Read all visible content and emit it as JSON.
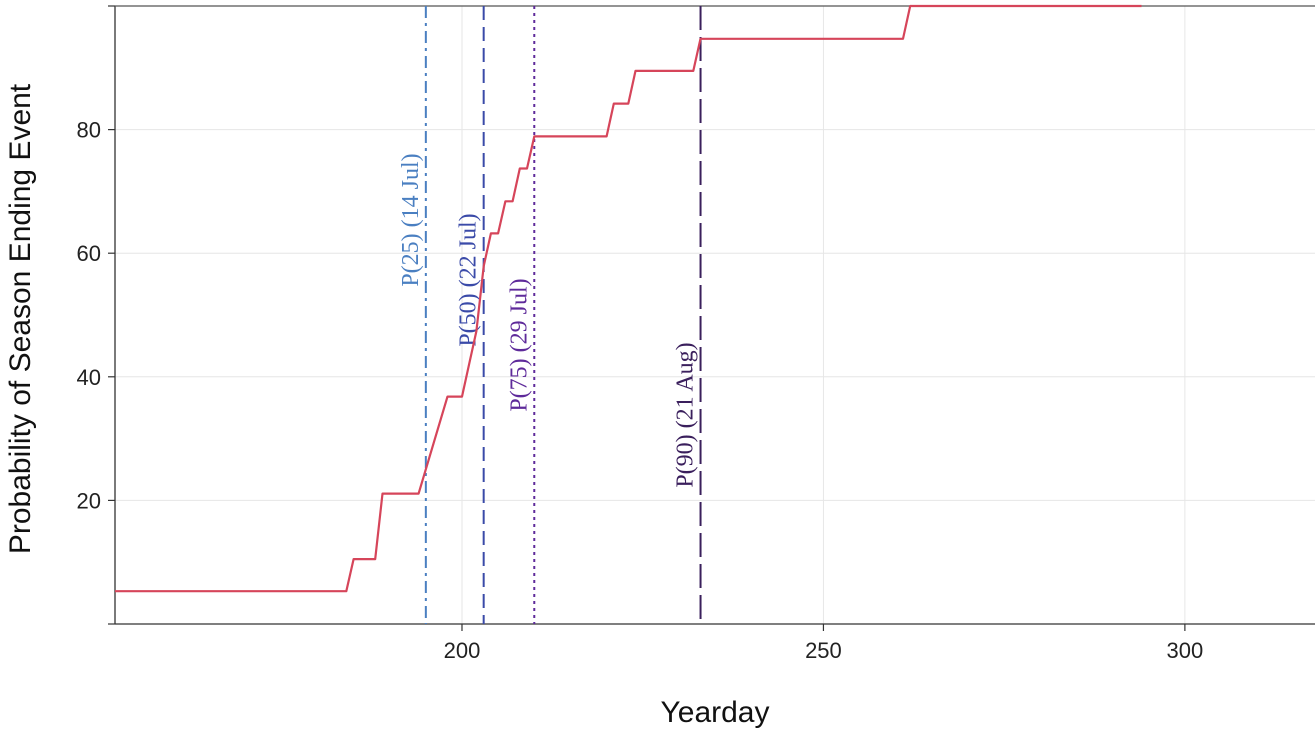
{
  "chart_data": {
    "type": "line",
    "title": "",
    "xlabel": "Yearday",
    "ylabel": "Probability of Season Ending Event",
    "xlim": [
      152,
      318
    ],
    "ylim": [
      0,
      100
    ],
    "xticks": [
      200,
      250,
      300
    ],
    "yticks": [
      20,
      40,
      60,
      80
    ],
    "grid": true,
    "series": [
      {
        "color": "#d6455a",
        "x": [
          152,
          184,
          185,
          188,
          189,
          194,
          198,
          200,
          201,
          202,
          203,
          204,
          205,
          206,
          207,
          208,
          209,
          210,
          220,
          221,
          223,
          224,
          232,
          233,
          261,
          262,
          294
        ],
        "y": [
          5.3,
          5.3,
          10.5,
          10.5,
          21.1,
          21.1,
          36.8,
          36.8,
          42.1,
          47.4,
          57.9,
          63.2,
          63.2,
          68.4,
          68.4,
          73.7,
          73.7,
          78.9,
          78.9,
          84.2,
          84.2,
          89.5,
          89.5,
          94.7,
          94.7,
          100,
          100
        ]
      }
    ],
    "reference_lines": [
      {
        "x": 195,
        "label": "P(25) (14 Jul)",
        "color": "#4a7fc1",
        "dash": "dashdot"
      },
      {
        "x": 203,
        "label": "P(50) (22 Jul)",
        "color": "#3a4aa8",
        "dash": "dashed"
      },
      {
        "x": 210,
        "label": "P(75) (29 Jul)",
        "color": "#5e2a9a",
        "dash": "dotted"
      },
      {
        "x": 233,
        "label": "P(90) (21 Aug)",
        "color": "#3a1f5c",
        "dash": "longdash"
      }
    ]
  }
}
